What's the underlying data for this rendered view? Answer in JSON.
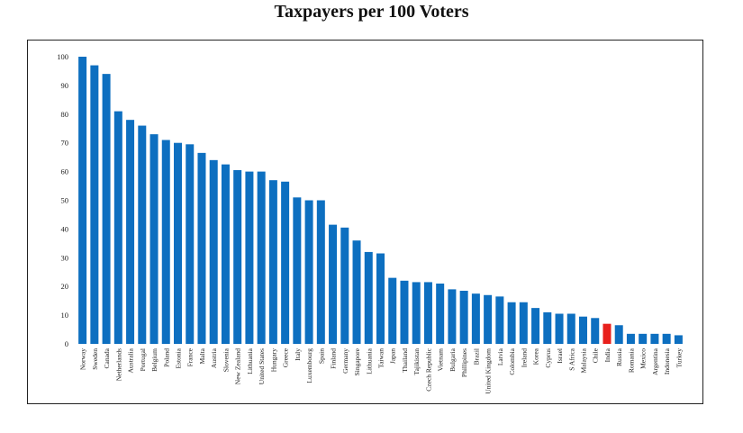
{
  "chart_data": {
    "type": "bar",
    "title": "Taxpayers per 100 Voters",
    "xlabel": "",
    "ylabel": "",
    "ylim": [
      0,
      100
    ],
    "yticks": [
      0,
      10,
      20,
      30,
      40,
      50,
      60,
      70,
      80,
      90,
      100
    ],
    "grid": false,
    "categories": [
      "Norway",
      "Sweden",
      "Canada",
      "Netherlands",
      "Australia",
      "Portugal",
      "Belgium",
      "Poland",
      "Estonia",
      "France",
      "Malta",
      "Austria",
      "Slovenia",
      "New Zealand",
      "Lithuania",
      "United States",
      "Hungary",
      "Greece",
      "Italy",
      "Luxembourg",
      "Spain",
      "Finland",
      "Germany",
      "Singapore",
      "Lithuania",
      "Taiwan",
      "Japan",
      "Thailand",
      "Tajikistan",
      "Czech Republic",
      "Vietnam",
      "Bulgaria",
      "Phillipines",
      "Brazil",
      "United Kingdom",
      "Latvia",
      "Colombia",
      "Ireland",
      "Korea",
      "Cyprus",
      "Israel",
      "S Africa",
      "Malaysia",
      "Chile",
      "India",
      "Russia",
      "Romania",
      "Mexico",
      "Argentina",
      "Indonesia",
      "Turkey"
    ],
    "values": [
      100,
      97,
      94,
      81,
      78,
      76,
      73,
      71,
      70,
      69.5,
      66.5,
      64,
      62.5,
      60.5,
      60,
      60,
      57,
      56.5,
      51,
      50,
      50,
      41.5,
      40.5,
      36,
      32,
      31.5,
      23,
      22,
      21.5,
      21.5,
      21,
      19,
      18.5,
      17.5,
      17,
      16.5,
      14.5,
      14.5,
      12.5,
      11,
      10.5,
      10.5,
      9.5,
      9,
      7,
      6.5,
      3.5,
      3.5,
      3.5,
      3.5,
      3
    ],
    "colors": {
      "bar": "#0d6fc0",
      "highlight": "#e8201c"
    },
    "highlight_category": "India"
  }
}
